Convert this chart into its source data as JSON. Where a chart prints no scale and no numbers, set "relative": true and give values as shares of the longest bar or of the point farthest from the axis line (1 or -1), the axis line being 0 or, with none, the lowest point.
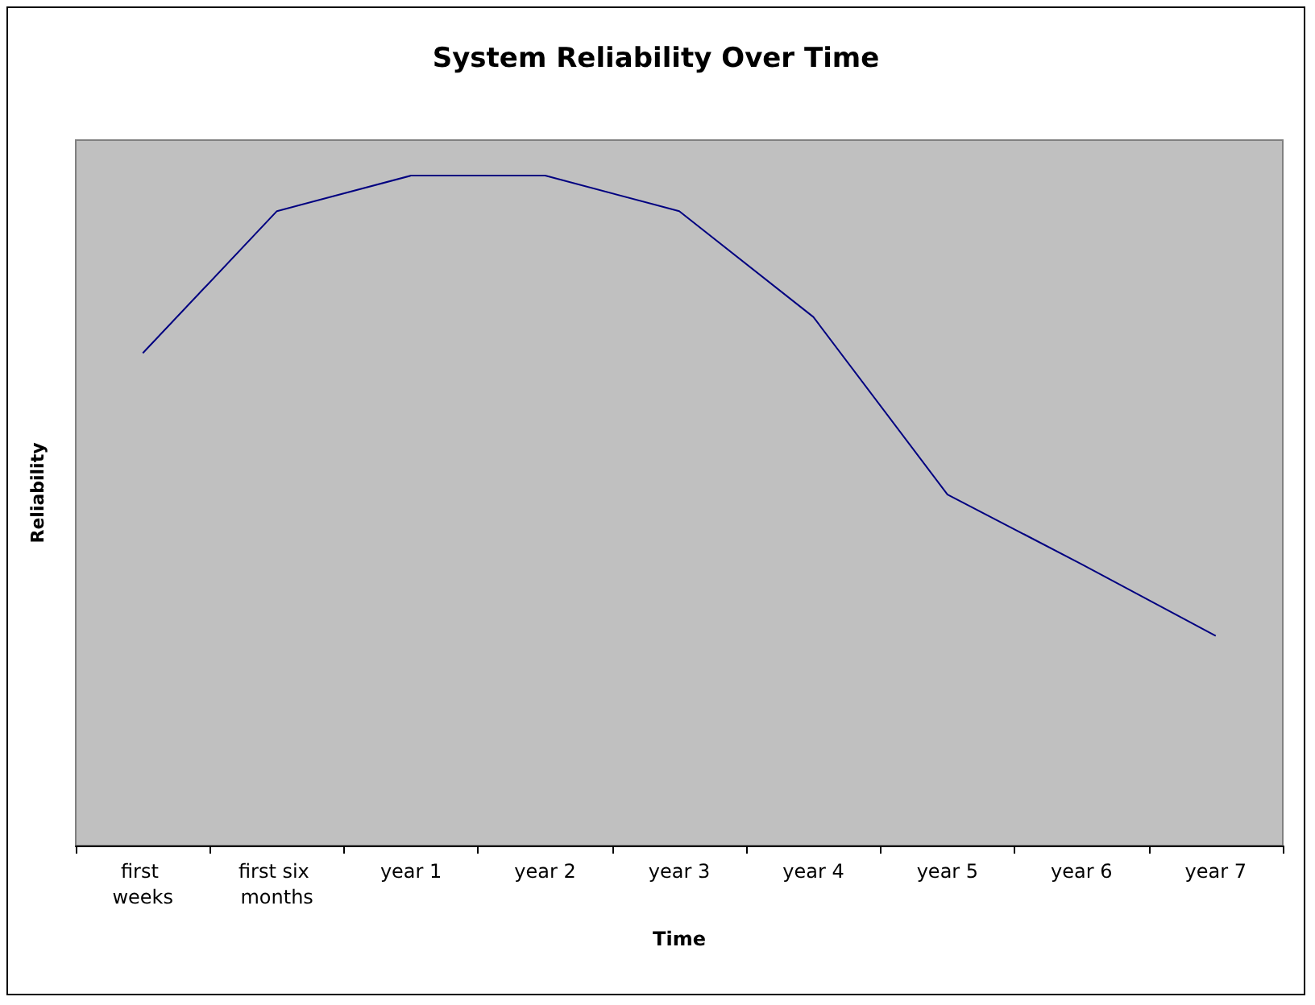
{
  "chart_data": {
    "type": "line",
    "title": "System Reliability Over Time",
    "xlabel": "Time",
    "ylabel": "Reliability",
    "categories": [
      "first weeks",
      "first six months",
      "year 1",
      "year 2",
      "year 3",
      "year 4",
      "year 5",
      "year 6",
      "year 7"
    ],
    "series": [
      {
        "color": "#000080",
        "values": [
          0.735,
          0.947,
          1,
          1,
          0.947,
          0.789,
          0.524,
          0.42,
          0.313
        ]
      }
    ],
    "relative": true,
    "marker": "none"
  }
}
